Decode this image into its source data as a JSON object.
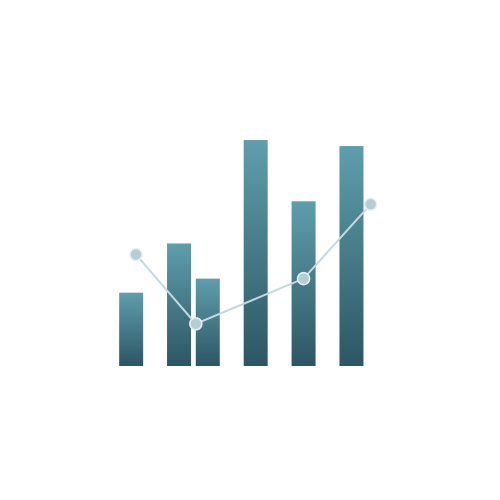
{
  "chart_data": {
    "type": "bar",
    "bars": [
      {
        "x": 1,
        "value": 73
      },
      {
        "x": 2,
        "value": 122
      },
      {
        "x": 2.6,
        "value": 87
      },
      {
        "x": 3.6,
        "value": 225
      },
      {
        "x": 4.6,
        "value": 164
      },
      {
        "x": 5.6,
        "value": 219
      }
    ],
    "line_points": [
      {
        "x": 1.1,
        "value": 111
      },
      {
        "x": 2.35,
        "value": 42
      },
      {
        "x": 4.6,
        "value": 87
      },
      {
        "x": 6.0,
        "value": 161
      }
    ],
    "xlim": [
      0.6,
      6.3
    ],
    "ylim": [
      0,
      230
    ],
    "grid": false,
    "legend": "none",
    "colors": {
      "bar_top": "#5f9ead",
      "bar_bottom": "#2d5663",
      "line": "#c4d8de",
      "point": "#b7cdd4"
    }
  }
}
